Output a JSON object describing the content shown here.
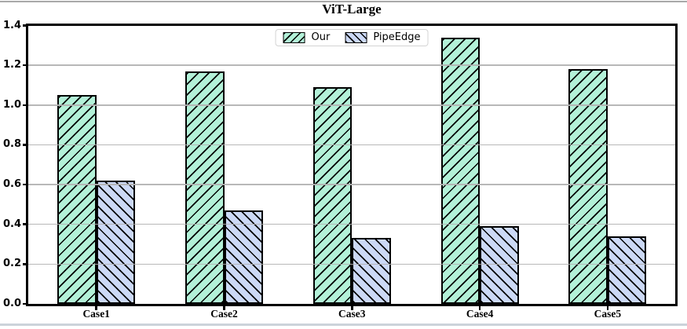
{
  "page": {
    "top_rule_color": "#a8a8a8",
    "bottom_rule_color": "#ccd3da"
  },
  "chart_data": {
    "type": "bar",
    "title": "ViT-Large",
    "categories": [
      "Case1",
      "Case2",
      "Case3",
      "Case4",
      "Case5"
    ],
    "series": [
      {
        "name": "Our",
        "color": "#b3f1d8",
        "hatch": "/",
        "edge_color": "#000000",
        "values": [
          1.05,
          1.17,
          1.09,
          1.34,
          1.18
        ]
      },
      {
        "name": "PipeEdge",
        "color": "#ccd9f6",
        "hatch": "\\",
        "edge_color": "#000000",
        "values": [
          0.62,
          0.47,
          0.33,
          0.39,
          0.34
        ]
      }
    ],
    "xlabel": "",
    "ylabel": "",
    "ylim": [
      0,
      1.4
    ],
    "yticks": [
      0.0,
      0.2,
      0.4,
      0.6,
      0.8,
      1.0,
      1.2,
      1.4
    ],
    "grid": "horizontal",
    "grid_above_bars": true,
    "grid_color": "#b2b2b2",
    "legend_position": "upper center",
    "legend_labels": [
      "Our",
      "PipeEdge"
    ]
  }
}
